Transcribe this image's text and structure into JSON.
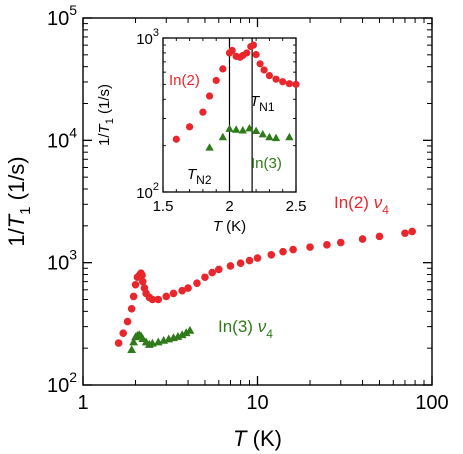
{
  "chart_data": [
    {
      "type": "scatter",
      "xscale": "log",
      "yscale": "log",
      "xlim": [
        1,
        100
      ],
      "ylim": [
        100,
        100000
      ],
      "xticks": [
        {
          "value": 1,
          "label": "1"
        },
        {
          "value": 10,
          "label": "10"
        },
        {
          "value": 100,
          "label": "100"
        }
      ],
      "yticks": [
        {
          "value": 100,
          "base": "10",
          "exp": "2"
        },
        {
          "value": 1000,
          "base": "10",
          "exp": "3"
        },
        {
          "value": 10000,
          "base": "10",
          "exp": "4"
        },
        {
          "value": 100000,
          "base": "10",
          "exp": "5"
        }
      ],
      "xlabel": {
        "symbol": "T",
        "unit": " (K)"
      },
      "ylabel": {
        "prefix": "1/",
        "symbol": "T",
        "sub": "1",
        "unit": " (1/s)"
      },
      "series": [
        {
          "marker": "circle",
          "color": "#e8262c",
          "label": {
            "text": "In(2) ",
            "symbol": "ν",
            "sub": "4"
          },
          "x": [
            1.6,
            1.7,
            1.8,
            1.9,
            1.95,
            2.0,
            2.05,
            2.1,
            2.12,
            2.15,
            2.18,
            2.2,
            2.25,
            2.3,
            2.4,
            2.5,
            2.7,
            3.0,
            3.3,
            3.7,
            4.0,
            4.5,
            5.0,
            5.5,
            6.0,
            7.0,
            8.0,
            9.0,
            10.0,
            12.0,
            14.0,
            16.0,
            20.0,
            25.0,
            30.0,
            40.0,
            50.0,
            70.0,
            77.0
          ],
          "y": [
            220,
            265,
            330,
            420,
            530,
            660,
            760,
            780,
            800,
            820,
            790,
            700,
            620,
            560,
            520,
            500,
            500,
            530,
            560,
            590,
            620,
            680,
            760,
            830,
            880,
            940,
            990,
            1040,
            1090,
            1160,
            1230,
            1280,
            1340,
            1400,
            1460,
            1560,
            1640,
            1740,
            1800
          ]
        },
        {
          "marker": "triangle",
          "color": "#2f7a1b",
          "label": {
            "text": "In(3) ",
            "symbol": "ν",
            "sub": "4"
          },
          "x": [
            1.9,
            1.95,
            2.0,
            2.05,
            2.1,
            2.15,
            2.2,
            2.3,
            2.4,
            2.5,
            2.7,
            2.9,
            3.1,
            3.3,
            3.5,
            3.7,
            3.9,
            4.1
          ],
          "y": [
            195,
            225,
            248,
            255,
            258,
            252,
            240,
            225,
            215,
            220,
            225,
            232,
            238,
            244,
            250,
            258,
            268,
            280
          ]
        }
      ]
    },
    {
      "type": "scatter",
      "inset": true,
      "xscale": "linear",
      "yscale": "log",
      "xlim": [
        1.5,
        2.5
      ],
      "ylim": [
        100,
        1000
      ],
      "xticks": [
        {
          "value": 1.5,
          "label": "1.5"
        },
        {
          "value": 2.0,
          "label": "2"
        },
        {
          "value": 2.5,
          "label": "2.5"
        }
      ],
      "yticks": [
        {
          "value": 100,
          "base": "10",
          "exp": "2"
        },
        {
          "value": 1000,
          "base": "10",
          "exp": "3"
        }
      ],
      "xlabel": {
        "symbol": "T",
        "unit": " (K)"
      },
      "ylabel": {
        "prefix": "1/",
        "symbol": "T",
        "sub": "1",
        "unit": " (1/s)"
      },
      "vlines": [
        {
          "x": 2.0,
          "label": {
            "symbol": "T",
            "sub": "N2"
          }
        },
        {
          "x": 2.17,
          "label": {
            "symbol": "T",
            "sub": "N1"
          }
        }
      ],
      "series": [
        {
          "marker": "circle",
          "color": "#e8262c",
          "label": {
            "text": "In(2)"
          },
          "x": [
            1.6,
            1.7,
            1.8,
            1.85,
            1.9,
            1.95,
            2.0,
            2.02,
            2.05,
            2.08,
            2.1,
            2.13,
            2.16,
            2.18,
            2.2,
            2.23,
            2.26,
            2.3,
            2.35,
            2.4,
            2.45,
            2.5
          ],
          "y": [
            220,
            265,
            330,
            420,
            530,
            630,
            800,
            830,
            760,
            750,
            770,
            800,
            880,
            900,
            780,
            680,
            620,
            570,
            540,
            520,
            505,
            500
          ]
        },
        {
          "marker": "triangle",
          "color": "#2f7a1b",
          "label": {
            "text": "In(3)"
          },
          "x": [
            1.85,
            1.95,
            2.0,
            2.05,
            2.1,
            2.15,
            2.2,
            2.25,
            2.3,
            2.35,
            2.45
          ],
          "y": [
            195,
            228,
            258,
            255,
            252,
            260,
            250,
            238,
            228,
            225,
            228
          ]
        }
      ]
    }
  ]
}
